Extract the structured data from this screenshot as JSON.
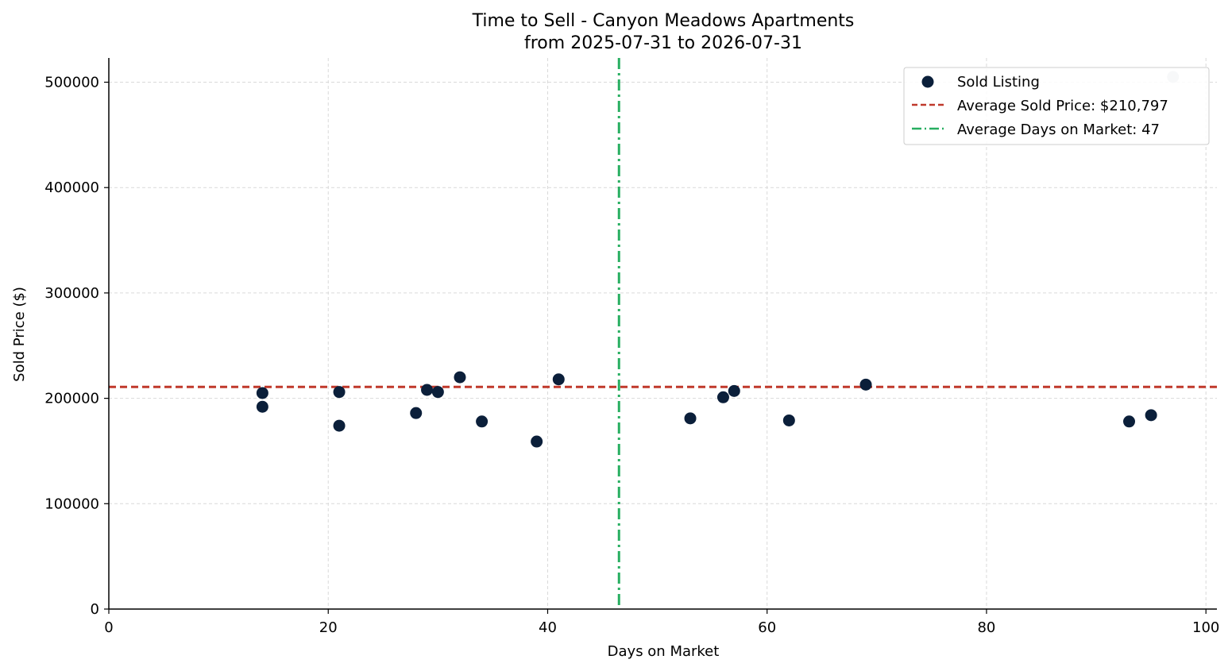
{
  "chart_data": {
    "type": "scatter",
    "title": "Time to Sell - Canyon Meadows Apartments",
    "subtitle": "from 2025-07-31 to 2026-07-31",
    "xlabel": "Days on Market",
    "ylabel": "Sold Price ($)",
    "xlim": [
      0,
      101
    ],
    "ylim": [
      0,
      523000
    ],
    "xticks": [
      0,
      20,
      40,
      60,
      80,
      100
    ],
    "yticks": [
      0,
      100000,
      200000,
      300000,
      400000,
      500000
    ],
    "grid": true,
    "legend_position": "top-right",
    "series": [
      {
        "name": "Sold Listing",
        "color": "#0b1f3a",
        "points": [
          {
            "x": 14,
            "y": 205000
          },
          {
            "x": 14,
            "y": 192000
          },
          {
            "x": 21,
            "y": 206000
          },
          {
            "x": 21,
            "y": 174000
          },
          {
            "x": 28,
            "y": 186000
          },
          {
            "x": 29,
            "y": 208000
          },
          {
            "x": 30,
            "y": 206000
          },
          {
            "x": 32,
            "y": 220000
          },
          {
            "x": 34,
            "y": 178000
          },
          {
            "x": 39,
            "y": 159000
          },
          {
            "x": 41,
            "y": 218000
          },
          {
            "x": 53,
            "y": 181000
          },
          {
            "x": 56,
            "y": 201000
          },
          {
            "x": 57,
            "y": 207000
          },
          {
            "x": 62,
            "y": 179000
          },
          {
            "x": 69,
            "y": 213000
          },
          {
            "x": 93,
            "y": 178000
          },
          {
            "x": 95,
            "y": 184000
          }
        ]
      },
      {
        "name": "",
        "color": "#c8ced8",
        "points": [
          {
            "x": 97,
            "y": 505000
          }
        ]
      }
    ],
    "reference_lines": [
      {
        "orientation": "horizontal",
        "value": 210797,
        "label": "Average Sold Price: $210,797",
        "color": "#c0392b",
        "style": "dashed"
      },
      {
        "orientation": "vertical",
        "value": 46.5,
        "label": "Average Days on Market: 47",
        "color": "#27ae60",
        "style": "dashdot"
      }
    ]
  }
}
